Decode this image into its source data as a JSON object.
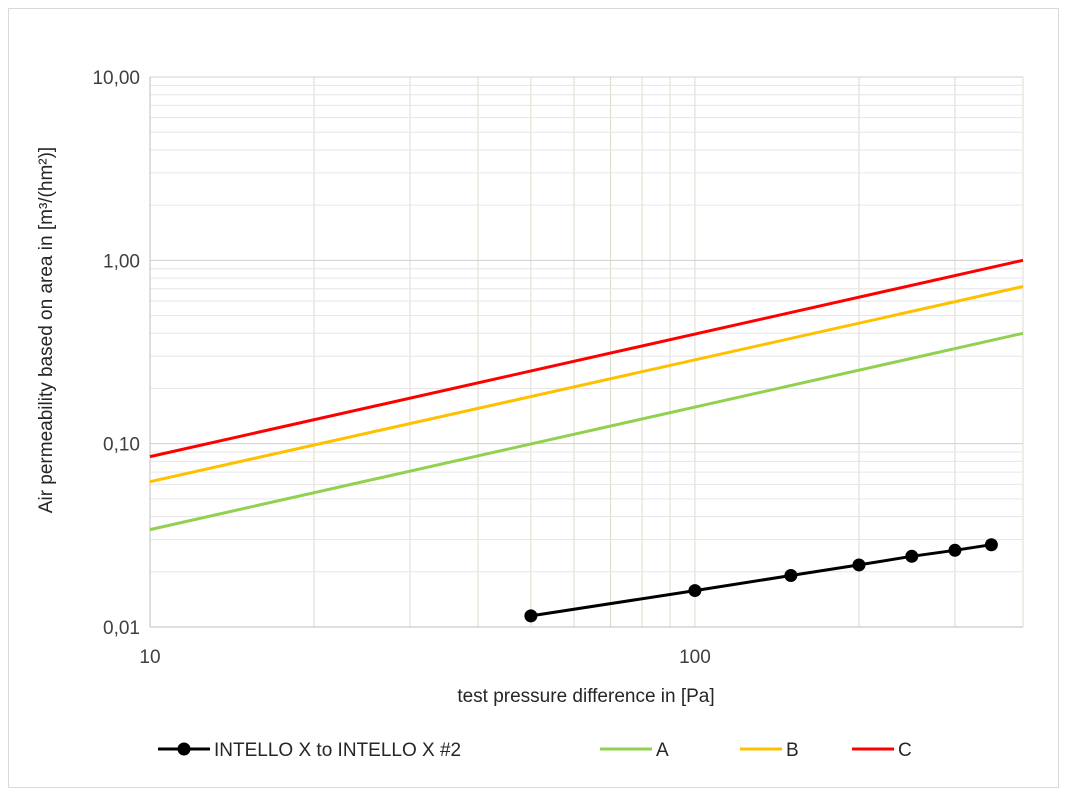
{
  "chart_data": {
    "type": "line",
    "x_scale": "log",
    "y_scale": "log",
    "xlabel": "test pressure difference in [Pa]",
    "ylabel": "Air permeability based on area in [m³/(hm²)]",
    "xlim": [
      10,
      400
    ],
    "ylim": [
      0.01,
      10
    ],
    "x_ticks": [
      {
        "value": 10,
        "label": "10"
      },
      {
        "value": 100,
        "label": "100"
      }
    ],
    "y_ticks": [
      {
        "value": 0.01,
        "label": "0,01"
      },
      {
        "value": 0.1,
        "label": "0,10"
      },
      {
        "value": 1,
        "label": "1,00"
      },
      {
        "value": 10,
        "label": "10,00"
      }
    ],
    "grid": true,
    "legend_position": "bottom",
    "series": [
      {
        "name": "INTELLO X to INTELLO X #2",
        "color": "#000000",
        "markers": true,
        "x": [
          50,
          100,
          150,
          200,
          250,
          300,
          350
        ],
        "y": [
          0.0115,
          0.0158,
          0.0191,
          0.0218,
          0.0243,
          0.0262,
          0.0281
        ]
      },
      {
        "name": "A",
        "color": "#92d050",
        "markers": false,
        "x": [
          10,
          400
        ],
        "y": [
          0.034,
          0.4
        ]
      },
      {
        "name": "B",
        "color": "#ffc000",
        "markers": false,
        "x": [
          10,
          400
        ],
        "y": [
          0.062,
          0.72
        ]
      },
      {
        "name": "C",
        "color": "#ff0000",
        "markers": false,
        "x": [
          10,
          400
        ],
        "y": [
          0.085,
          1.0
        ]
      }
    ]
  }
}
